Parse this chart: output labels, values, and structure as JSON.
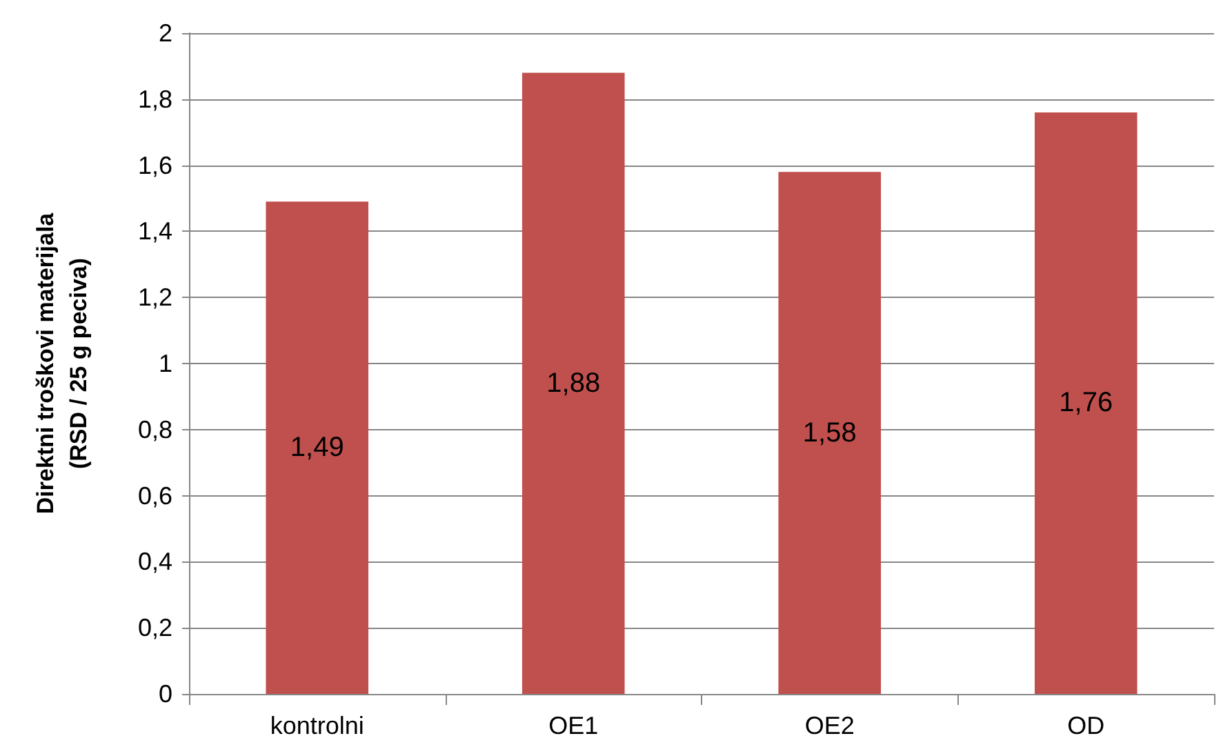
{
  "chart_data": {
    "type": "bar",
    "ylabel": "Direktni troškovi materijala\n(RSD / 25 g peciva)",
    "categories": [
      "kontrolni",
      "OE1",
      "OE2",
      "OD"
    ],
    "values": [
      1.49,
      1.88,
      1.58,
      1.76
    ],
    "value_labels": [
      "1,49",
      "1,88",
      "1,58",
      "1,76"
    ],
    "color": "#c0504d",
    "ylim": [
      0,
      2
    ],
    "yticks": [
      0,
      {
        "value": 0.2,
        "label": "0,2"
      },
      {
        "value": 0.4,
        "label": "0,4"
      },
      {
        "value": 0.6,
        "label": "0,6"
      },
      {
        "value": 0.8,
        "label": "0,8"
      },
      1,
      {
        "value": 1.2,
        "label": "1,2"
      },
      {
        "value": 1.4,
        "label": "1,4"
      },
      {
        "value": 1.6,
        "label": "1,6"
      },
      {
        "value": 1.8,
        "label": "1,8"
      },
      2
    ],
    "grid": "y"
  }
}
